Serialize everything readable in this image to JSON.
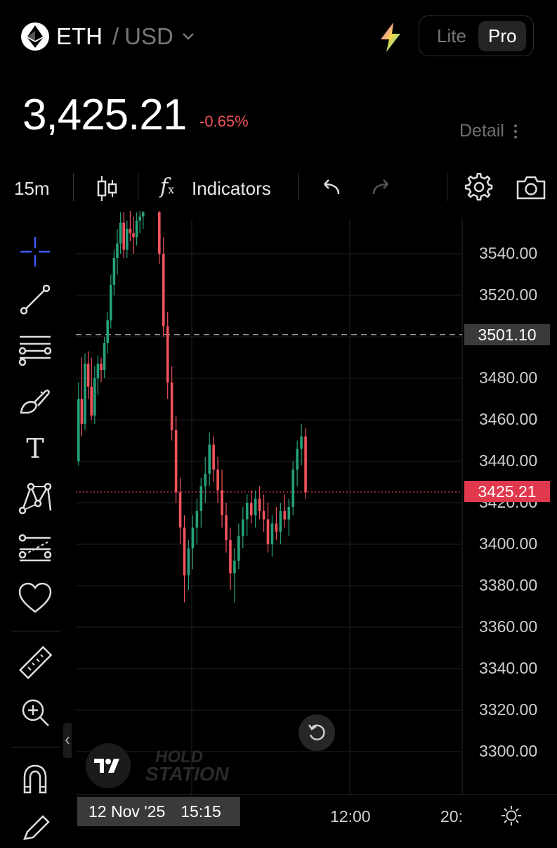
{
  "header": {
    "base": "ETH",
    "separator": "/",
    "quote": "USD",
    "mode_lite": "Lite",
    "mode_pro": "Pro",
    "selected_mode": "Pro"
  },
  "quote_info": {
    "price": "3,425.21",
    "change": "-0.65%",
    "detail_label": "Detail"
  },
  "toolbar": {
    "interval": "15m",
    "indicators_label": "Indicators",
    "fx_symbol": "f",
    "fx_sub": "x"
  },
  "left_tools": {
    "text_tool": "T"
  },
  "price_axis": {
    "labels": [
      "3540.00",
      "3520.00",
      "3480.00",
      "3460.00",
      "3440.00",
      "3420.00",
      "3400.00",
      "3380.00",
      "3360.00",
      "3340.00",
      "3320.00",
      "3300.00"
    ],
    "high_line": "3501.10",
    "last_price": "3425.21"
  },
  "time_axis": {
    "cursor_date": "12 Nov '25",
    "cursor_time": "15:15",
    "labels": [
      "12:00",
      "20:"
    ]
  },
  "watermark": {
    "line1": "HOLD",
    "line2": "STATION"
  },
  "tv_logo_text": "TV",
  "colors": {
    "up": "#26a17b",
    "down": "#f0535a",
    "last_price_tag": "#e0394d",
    "background": "#000000"
  },
  "chart_data": {
    "type": "candlestick",
    "ylim": [
      3290,
      3562
    ],
    "high_line": 3501.1,
    "last": 3425.21,
    "candles": [
      [
        3440,
        3478,
        3438,
        3470
      ],
      [
        3470,
        3490,
        3452,
        3458
      ],
      [
        3458,
        3492,
        3455,
        3487
      ],
      [
        3487,
        3493,
        3470,
        3476
      ],
      [
        3476,
        3490,
        3460,
        3462
      ],
      [
        3462,
        3486,
        3458,
        3480
      ],
      [
        3480,
        3491,
        3472,
        3487
      ],
      [
        3487,
        3490,
        3478,
        3484
      ],
      [
        3484,
        3500,
        3480,
        3497
      ],
      [
        3497,
        3512,
        3492,
        3508
      ],
      [
        3508,
        3530,
        3504,
        3525
      ],
      [
        3525,
        3542,
        3520,
        3538
      ],
      [
        3538,
        3552,
        3530,
        3545
      ],
      [
        3545,
        3560,
        3540,
        3555
      ],
      [
        3555,
        3560,
        3538,
        3542
      ],
      [
        3542,
        3556,
        3538,
        3552
      ],
      [
        3552,
        3562,
        3546,
        3550
      ],
      [
        3550,
        3558,
        3540,
        3548
      ],
      [
        3548,
        3560,
        3544,
        3556
      ],
      [
        3556,
        3562,
        3550,
        3558
      ],
      [
        3558,
        3562,
        3552,
        3560
      ],
      [
        3560,
        3562,
        3535,
        3540
      ],
      [
        3540,
        3548,
        3500,
        3505
      ],
      [
        3505,
        3512,
        3470,
        3478
      ],
      [
        3478,
        3486,
        3450,
        3455
      ],
      [
        3455,
        3462,
        3420,
        3425
      ],
      [
        3425,
        3432,
        3400,
        3408
      ],
      [
        3408,
        3414,
        3372,
        3385
      ],
      [
        3385,
        3402,
        3378,
        3398
      ],
      [
        3398,
        3414,
        3388,
        3408
      ],
      [
        3408,
        3422,
        3400,
        3416
      ],
      [
        3416,
        3432,
        3408,
        3428
      ],
      [
        3428,
        3442,
        3420,
        3434
      ],
      [
        3434,
        3454,
        3428,
        3448
      ],
      [
        3448,
        3452,
        3430,
        3436
      ],
      [
        3436,
        3442,
        3420,
        3426
      ],
      [
        3426,
        3436,
        3408,
        3414
      ],
      [
        3414,
        3420,
        3396,
        3402
      ],
      [
        3402,
        3408,
        3378,
        3386
      ],
      [
        3386,
        3398,
        3372,
        3392
      ],
      [
        3392,
        3410,
        3388,
        3404
      ],
      [
        3404,
        3418,
        3398,
        3412
      ],
      [
        3412,
        3424,
        3404,
        3420
      ],
      [
        3420,
        3426,
        3410,
        3414
      ],
      [
        3414,
        3426,
        3408,
        3422
      ],
      [
        3422,
        3428,
        3412,
        3416
      ],
      [
        3416,
        3424,
        3406,
        3412
      ],
      [
        3412,
        3420,
        3396,
        3400
      ],
      [
        3400,
        3414,
        3394,
        3410
      ],
      [
        3410,
        3418,
        3402,
        3406
      ],
      [
        3406,
        3420,
        3400,
        3416
      ],
      [
        3416,
        3424,
        3408,
        3412
      ],
      [
        3412,
        3422,
        3404,
        3418
      ],
      [
        3418,
        3440,
        3414,
        3436
      ],
      [
        3436,
        3450,
        3428,
        3446
      ],
      [
        3446,
        3458,
        3438,
        3452
      ],
      [
        3452,
        3456,
        3422,
        3425
      ]
    ]
  }
}
